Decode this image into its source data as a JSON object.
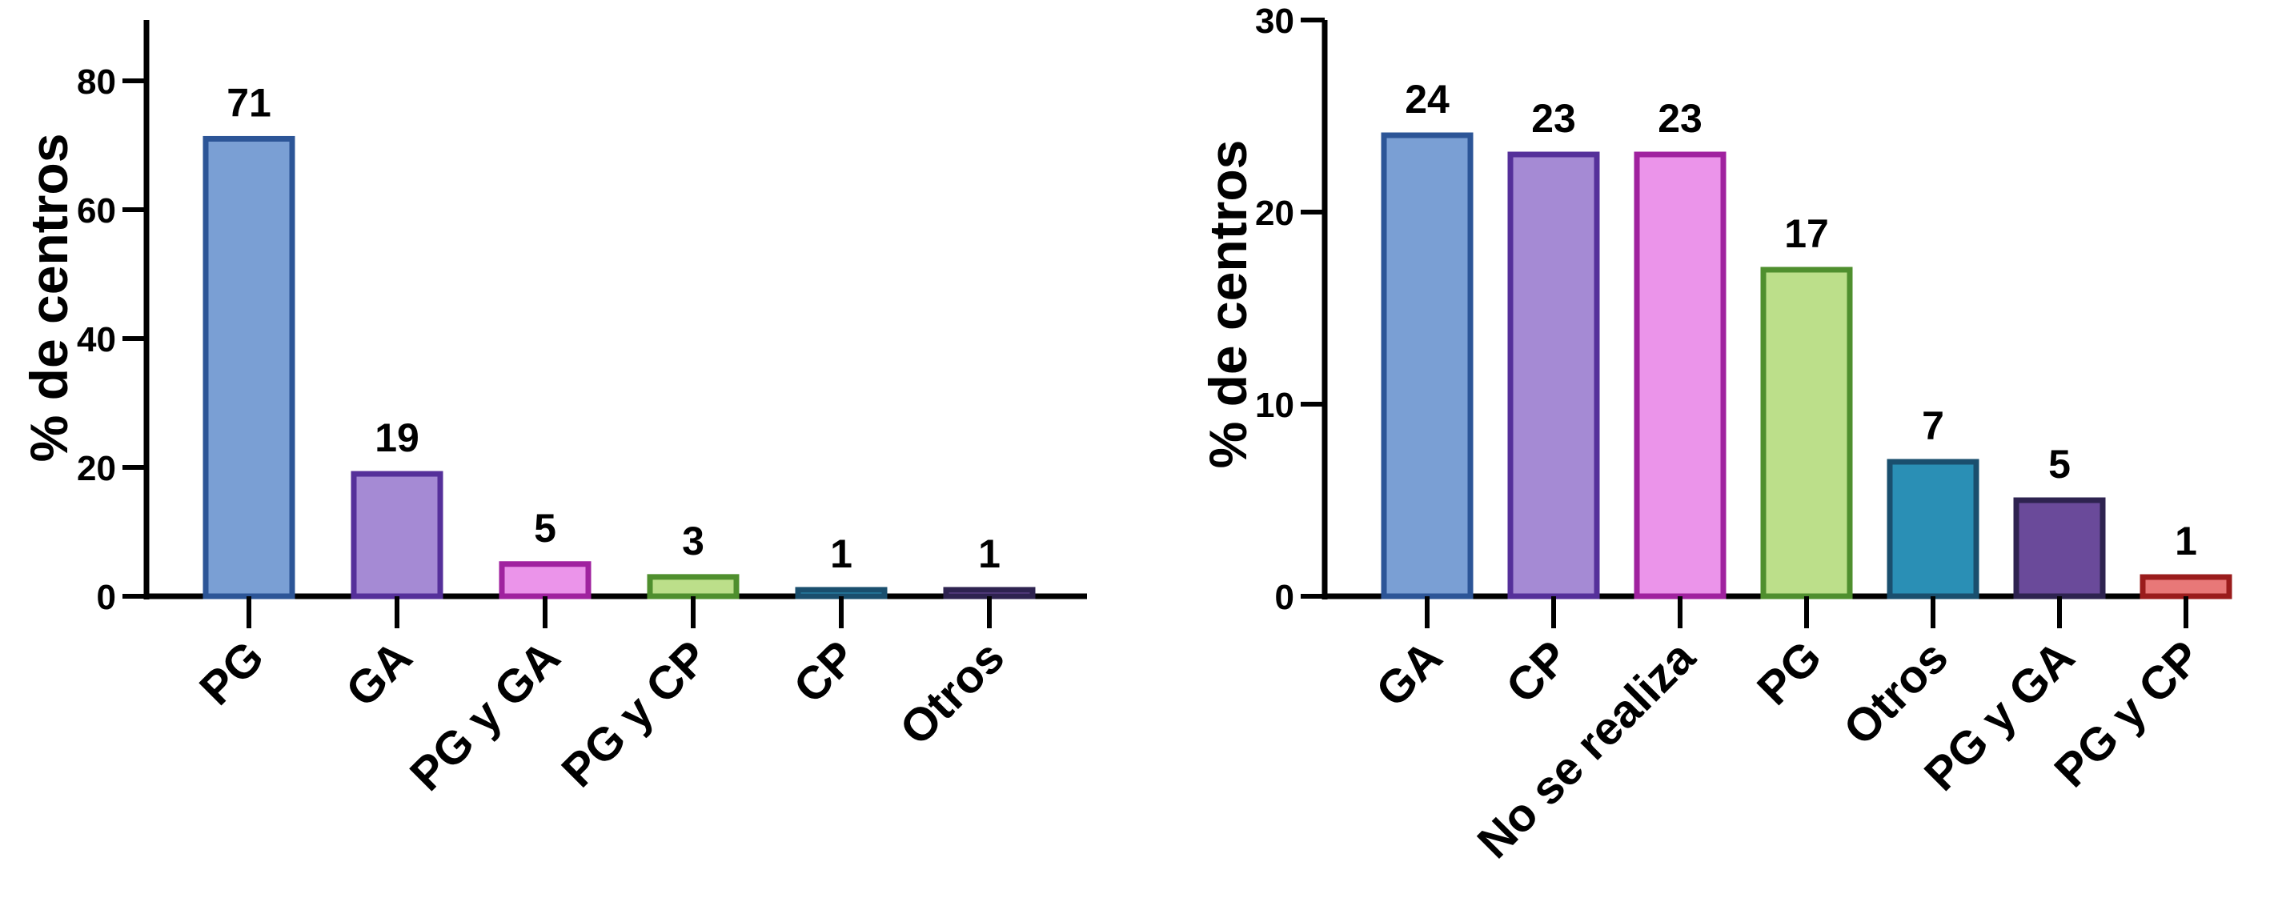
{
  "chart_data": [
    {
      "type": "bar",
      "categories": [
        "PG",
        "GA",
        "PG y GA",
        "PG y CP",
        "CP",
        "Otros"
      ],
      "values": [
        71,
        19,
        5,
        3,
        1,
        1
      ],
      "data_labels": [
        "71",
        "19",
        "5",
        "3",
        "1",
        "1"
      ],
      "colors": [
        {
          "fill": "#7a9fd4",
          "stroke": "#2c5597"
        },
        {
          "fill": "#a58ad4",
          "stroke": "#55309a"
        },
        {
          "fill": "#eb94ea",
          "stroke": "#a0229f"
        },
        {
          "fill": "#bcdf8a",
          "stroke": "#4f8f2e"
        },
        {
          "fill": "#2a8fb5",
          "stroke": "#1a4f6e"
        },
        {
          "fill": "#6a4a9a",
          "stroke": "#2e2350"
        }
      ],
      "title": "",
      "xlabel": "",
      "ylabel": "% de centros",
      "ylim": [
        0,
        90
      ],
      "yticks": [
        0,
        20,
        40,
        60,
        80
      ],
      "ytick_labels": [
        "0",
        "20",
        "40",
        "60",
        "80"
      ],
      "grid": false
    },
    {
      "type": "bar",
      "categories": [
        "GA",
        "CP",
        "No se realiza",
        "PG",
        "Otros",
        "PG y GA",
        "PG y CP"
      ],
      "values": [
        24,
        23,
        23,
        17,
        7,
        5,
        1
      ],
      "data_labels": [
        "24",
        "23",
        "23",
        "17",
        "7",
        "5",
        "1"
      ],
      "colors": [
        {
          "fill": "#7a9fd4",
          "stroke": "#2c5597"
        },
        {
          "fill": "#a58ad4",
          "stroke": "#55309a"
        },
        {
          "fill": "#eb94ea",
          "stroke": "#a0229f"
        },
        {
          "fill": "#bcdf8a",
          "stroke": "#4f8f2e"
        },
        {
          "fill": "#2a8fb5",
          "stroke": "#1a4f6e"
        },
        {
          "fill": "#6a4a9a",
          "stroke": "#2e2350"
        },
        {
          "fill": "#e87878",
          "stroke": "#9a1c1c"
        }
      ],
      "title": "",
      "xlabel": "",
      "ylabel": "% de centros",
      "ylim": [
        0,
        30
      ],
      "yticks": [
        0,
        10,
        20,
        30
      ],
      "ytick_labels": [
        "0",
        "10",
        "20",
        "30"
      ],
      "grid": false
    }
  ]
}
